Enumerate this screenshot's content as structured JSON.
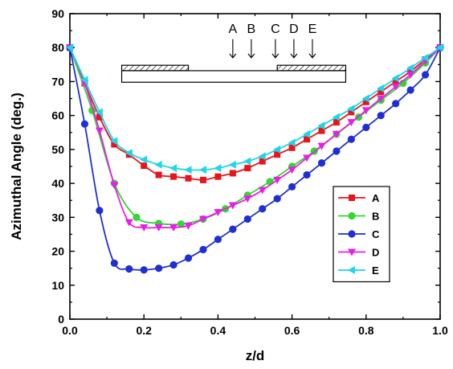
{
  "chart_data": {
    "type": "line",
    "title": "",
    "xlabel": "z/d",
    "ylabel": "Azimuthal Angle (deg.)",
    "xlim": [
      0.0,
      1.0
    ],
    "ylim": [
      0,
      90
    ],
    "x_ticks": [
      "0.0",
      "0.2",
      "0.4",
      "0.6",
      "0.8",
      "1.0"
    ],
    "x_tick_values": [
      0.0,
      0.2,
      0.4,
      0.6,
      0.8,
      1.0
    ],
    "y_ticks": [
      "0",
      "10",
      "20",
      "30",
      "40",
      "50",
      "60",
      "70",
      "80",
      "90"
    ],
    "y_tick_values": [
      0,
      10,
      20,
      30,
      40,
      50,
      60,
      70,
      80,
      90
    ],
    "grid": false,
    "legend_position": "right",
    "series": [
      {
        "name": "A",
        "color": "#e8141b",
        "marker": "square",
        "x": [
          0.0,
          0.04,
          0.08,
          0.12,
          0.16,
          0.2,
          0.24,
          0.28,
          0.32,
          0.36,
          0.4,
          0.44,
          0.48,
          0.52,
          0.56,
          0.6,
          0.64,
          0.68,
          0.72,
          0.76,
          0.8,
          0.84,
          0.88,
          0.92,
          0.96,
          1.0
        ],
        "y": [
          80,
          69.5,
          59.5,
          51.5,
          48.5,
          45.2,
          42.5,
          42.0,
          41.5,
          41.0,
          42.0,
          43.0,
          44.5,
          46.5,
          48.5,
          50.5,
          53.0,
          55.5,
          58.0,
          61.0,
          64.0,
          67.0,
          70.0,
          73.0,
          76.5,
          80
        ]
      },
      {
        "name": "B",
        "color": "#33d633",
        "marker": "circle",
        "x": [
          0.0,
          0.06,
          0.12,
          0.18,
          0.24,
          0.3,
          0.36,
          0.42,
          0.48,
          0.54,
          0.6,
          0.66,
          0.72,
          0.78,
          0.84,
          0.9,
          0.96,
          1.0
        ],
        "y": [
          80,
          61.5,
          40.0,
          30.0,
          28.2,
          28.0,
          29.5,
          32.5,
          36.5,
          40.5,
          45.0,
          49.5,
          54.5,
          59.5,
          64.5,
          69.5,
          75.5,
          80
        ]
      },
      {
        "name": "C",
        "color": "#1f2fd6",
        "marker": "circle",
        "x": [
          0.0,
          0.04,
          0.08,
          0.12,
          0.16,
          0.2,
          0.24,
          0.28,
          0.32,
          0.36,
          0.4,
          0.44,
          0.48,
          0.52,
          0.56,
          0.6,
          0.64,
          0.68,
          0.72,
          0.76,
          0.8,
          0.84,
          0.88,
          0.92,
          0.96,
          1.0
        ],
        "y": [
          80,
          57.5,
          32.0,
          16.5,
          14.8,
          14.5,
          15.0,
          16.0,
          18.0,
          20.5,
          23.5,
          26.5,
          29.5,
          32.5,
          35.5,
          39.0,
          42.5,
          46.0,
          49.5,
          53.0,
          56.5,
          60.0,
          63.5,
          67.5,
          72.0,
          80
        ]
      },
      {
        "name": "D",
        "color": "#e81ee8",
        "marker": "triangle-down",
        "x": [
          0.0,
          0.04,
          0.08,
          0.12,
          0.16,
          0.2,
          0.24,
          0.28,
          0.32,
          0.36,
          0.4,
          0.44,
          0.48,
          0.52,
          0.56,
          0.6,
          0.64,
          0.68,
          0.72,
          0.76,
          0.8,
          0.84,
          0.88,
          0.92,
          0.96,
          1.0
        ],
        "y": [
          80,
          69.5,
          55.5,
          39.5,
          28.5,
          27.0,
          27.0,
          27.0,
          27.5,
          29.5,
          31.5,
          33.5,
          35.5,
          38.0,
          41.0,
          44.0,
          47.5,
          51.0,
          54.5,
          58.0,
          61.5,
          65.0,
          68.5,
          72.0,
          76.0,
          80
        ]
      },
      {
        "name": "E",
        "color": "#1ed6e8",
        "marker": "triangle-left",
        "x": [
          0.0,
          0.04,
          0.08,
          0.12,
          0.16,
          0.2,
          0.24,
          0.28,
          0.32,
          0.36,
          0.4,
          0.44,
          0.48,
          0.52,
          0.56,
          0.6,
          0.64,
          0.68,
          0.72,
          0.76,
          0.8,
          0.84,
          0.88,
          0.92,
          0.96,
          1.0
        ],
        "y": [
          80,
          70.5,
          61.0,
          52.5,
          49.0,
          47.0,
          45.5,
          44.5,
          44.0,
          44.0,
          44.5,
          45.5,
          46.5,
          48.0,
          50.0,
          52.0,
          54.5,
          57.0,
          59.5,
          62.0,
          65.0,
          68.0,
          71.0,
          74.0,
          77.0,
          80
        ]
      }
    ],
    "inset": {
      "arrow_labels": [
        "A",
        "B",
        "C",
        "D",
        "E"
      ],
      "arrow_x": [
        0.44,
        0.49,
        0.555,
        0.605,
        0.655
      ],
      "left_hatch_x": [
        0.14,
        0.32
      ],
      "right_hatch_x": [
        0.56,
        0.745
      ],
      "base_x": [
        0.14,
        0.745
      ]
    }
  }
}
